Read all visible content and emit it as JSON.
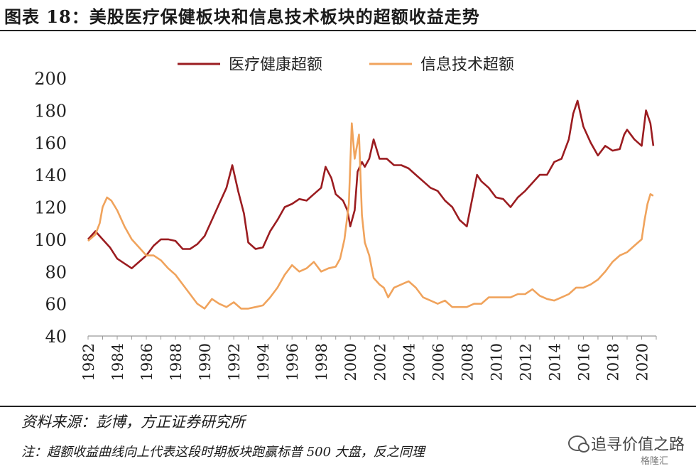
{
  "title": "图表 18：美股医疗保健板块和信息技术板块的超额收益走势",
  "footer": {
    "source": "资料来源：彭博，方正证券研究所",
    "note": "注：超额收益曲线向上代表这段时期板块跑赢标普 500 大盘，反之同理",
    "watermark": "追寻价值之路",
    "brand": "格隆汇"
  },
  "chart_data": {
    "type": "line",
    "ylim": [
      40,
      200
    ],
    "yticks": [
      40,
      60,
      80,
      100,
      120,
      140,
      160,
      180,
      200
    ],
    "xlim": [
      1982,
      2021
    ],
    "xticks": [
      "1982",
      "1984",
      "1986",
      "1988",
      "1990",
      "1992",
      "1994",
      "1996",
      "1998",
      "2000",
      "2002",
      "2004",
      "2006",
      "2008",
      "2010",
      "2012",
      "2014",
      "2016",
      "2018",
      "2020"
    ],
    "grid": false,
    "legend_position": "top",
    "series": [
      {
        "name": "医疗健康超额",
        "color": "#9b1c20",
        "x": [
          1982.0,
          1982.5,
          1983.0,
          1983.5,
          1984.0,
          1984.5,
          1985.0,
          1985.5,
          1986.0,
          1986.5,
          1987.0,
          1987.5,
          1988.0,
          1988.5,
          1989.0,
          1989.5,
          1990.0,
          1990.5,
          1991.0,
          1991.5,
          1991.9,
          1992.3,
          1992.7,
          1993.0,
          1993.5,
          1994.0,
          1994.5,
          1995.0,
          1995.5,
          1996.0,
          1996.5,
          1997.0,
          1997.5,
          1998.0,
          1998.3,
          1998.7,
          1999.0,
          1999.5,
          1999.8,
          2000.0,
          2000.3,
          2000.5,
          2000.8,
          2001.0,
          2001.3,
          2001.6,
          2002.0,
          2002.5,
          2003.0,
          2003.5,
          2004.0,
          2004.5,
          2005.0,
          2005.5,
          2006.0,
          2006.5,
          2007.0,
          2007.5,
          2008.0,
          2008.3,
          2008.7,
          2009.0,
          2009.5,
          2010.0,
          2010.5,
          2011.0,
          2011.5,
          2012.0,
          2012.5,
          2013.0,
          2013.5,
          2014.0,
          2014.5,
          2015.0,
          2015.3,
          2015.6,
          2016.0,
          2016.5,
          2017.0,
          2017.5,
          2018.0,
          2018.5,
          2018.8,
          2019.0,
          2019.5,
          2020.0,
          2020.3,
          2020.6,
          2020.8
        ],
        "values": [
          100,
          105,
          100,
          95,
          88,
          85,
          82,
          86,
          90,
          96,
          100,
          100,
          99,
          94,
          94,
          97,
          102,
          112,
          122,
          132,
          146,
          130,
          116,
          98,
          94,
          95,
          105,
          112,
          120,
          122,
          125,
          124,
          128,
          132,
          145,
          138,
          128,
          124,
          118,
          108,
          118,
          142,
          148,
          145,
          150,
          162,
          150,
          150,
          146,
          146,
          144,
          140,
          136,
          132,
          130,
          124,
          120,
          112,
          108,
          122,
          140,
          136,
          132,
          126,
          125,
          120,
          126,
          130,
          135,
          140,
          140,
          148,
          150,
          162,
          178,
          186,
          170,
          160,
          152,
          158,
          155,
          156,
          165,
          168,
          162,
          158,
          180,
          172,
          158
        ]
      },
      {
        "name": "信息技术超额",
        "color": "#f0a35c",
        "x": [
          1982.0,
          1982.5,
          1982.8,
          1983.0,
          1983.3,
          1983.6,
          1984.0,
          1984.5,
          1985.0,
          1985.5,
          1986.0,
          1986.5,
          1987.0,
          1987.5,
          1988.0,
          1988.5,
          1989.0,
          1989.5,
          1990.0,
          1990.5,
          1991.0,
          1991.5,
          1992.0,
          1992.5,
          1993.0,
          1993.5,
          1994.0,
          1994.5,
          1995.0,
          1995.5,
          1996.0,
          1996.5,
          1997.0,
          1997.5,
          1998.0,
          1998.5,
          1999.0,
          1999.3,
          1999.6,
          1999.9,
          2000.1,
          2000.3,
          2000.6,
          2000.8,
          2001.0,
          2001.3,
          2001.6,
          2002.0,
          2002.3,
          2002.6,
          2003.0,
          2003.5,
          2004.0,
          2004.5,
          2005.0,
          2005.5,
          2006.0,
          2006.5,
          2007.0,
          2007.5,
          2008.0,
          2008.5,
          2009.0,
          2009.5,
          2010.0,
          2010.5,
          2011.0,
          2011.5,
          2012.0,
          2012.5,
          2013.0,
          2013.5,
          2014.0,
          2014.5,
          2015.0,
          2015.5,
          2016.0,
          2016.5,
          2017.0,
          2017.5,
          2018.0,
          2018.5,
          2019.0,
          2019.5,
          2020.0,
          2020.2,
          2020.4,
          2020.6,
          2020.8
        ],
        "values": [
          99,
          103,
          110,
          120,
          126,
          124,
          118,
          108,
          100,
          95,
          90,
          90,
          87,
          82,
          78,
          72,
          66,
          60,
          57,
          63,
          60,
          58,
          61,
          57,
          57,
          58,
          59,
          64,
          70,
          78,
          84,
          80,
          82,
          86,
          80,
          82,
          83,
          88,
          100,
          122,
          172,
          150,
          165,
          115,
          98,
          90,
          76,
          72,
          70,
          64,
          70,
          72,
          74,
          70,
          64,
          62,
          60,
          62,
          58,
          58,
          58,
          60,
          60,
          64,
          64,
          64,
          64,
          66,
          66,
          69,
          65,
          63,
          62,
          64,
          66,
          70,
          70,
          72,
          75,
          80,
          86,
          90,
          92,
          96,
          100,
          112,
          122,
          128,
          127
        ]
      }
    ]
  }
}
